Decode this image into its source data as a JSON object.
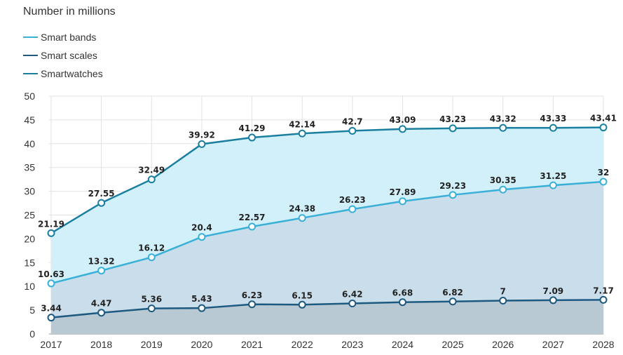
{
  "chart_data": {
    "type": "area",
    "title": "",
    "unit_label": "Number in millions",
    "xlabel": "",
    "ylabel": "Number in millions",
    "categories": [
      "2017",
      "2018",
      "2019",
      "2020",
      "2021",
      "2022",
      "2023",
      "2024",
      "2025",
      "2026",
      "2027",
      "2028"
    ],
    "ylim": [
      0,
      50
    ],
    "yticks": [
      0,
      5,
      10,
      15,
      20,
      25,
      30,
      35,
      40,
      45,
      50
    ],
    "grid": true,
    "legend_position": "top-left",
    "series": [
      {
        "name": "Smart bands",
        "values": [
          10.63,
          13.32,
          16.12,
          20.4,
          22.57,
          24.38,
          26.23,
          27.89,
          29.23,
          30.35,
          31.25,
          32
        ],
        "labels": [
          "10.63",
          "13.32",
          "16.12",
          "20.4",
          "22.57",
          "24.38",
          "26.23",
          "27.89",
          "29.23",
          "30.35",
          "31.25",
          "32"
        ],
        "line_color": "#3ab0d8",
        "fill_color": "#c9deea"
      },
      {
        "name": "Smart scales",
        "values": [
          3.44,
          4.47,
          5.36,
          5.43,
          6.23,
          6.15,
          6.42,
          6.68,
          6.82,
          7,
          7.09,
          7.17
        ],
        "labels": [
          "3.44",
          "4.47",
          "5.36",
          "5.43",
          "6.23",
          "6.15",
          "6.42",
          "6.68",
          "6.82",
          "7",
          "7.09",
          "7.17"
        ],
        "line_color": "#1e5a80",
        "fill_color": "#b8c9d4"
      },
      {
        "name": "Smartwatches",
        "values": [
          21.19,
          27.55,
          32.49,
          39.92,
          41.29,
          42.14,
          42.7,
          43.09,
          43.23,
          43.32,
          43.33,
          43.41
        ],
        "labels": [
          "21.19",
          "27.55",
          "32.49",
          "39.92",
          "41.29",
          "42.14",
          "42.7",
          "43.09",
          "43.23",
          "43.32",
          "43.33",
          "43.41"
        ],
        "line_color": "#1a7fa0",
        "fill_color": "#d2f0fa"
      }
    ]
  }
}
